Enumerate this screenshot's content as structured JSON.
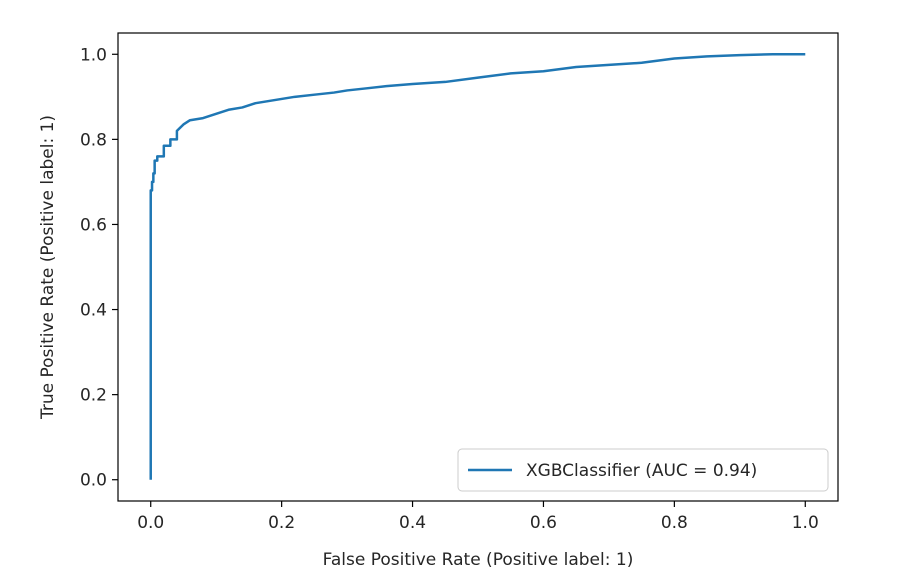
{
  "chart_data": {
    "type": "line",
    "title": "",
    "xlabel": "False Positive Rate (Positive label: 1)",
    "ylabel": "True Positive Rate (Positive label: 1)",
    "xlim": [
      -0.05,
      1.05
    ],
    "ylim": [
      -0.05,
      1.05
    ],
    "x_ticks": [
      0.0,
      0.2,
      0.4,
      0.6,
      0.8,
      1.0
    ],
    "y_ticks": [
      0.0,
      0.2,
      0.4,
      0.6,
      0.8,
      1.0
    ],
    "x_tick_labels": [
      "0.0",
      "0.2",
      "0.4",
      "0.6",
      "0.8",
      "1.0"
    ],
    "y_tick_labels": [
      "0.0",
      "0.2",
      "0.4",
      "0.6",
      "0.8",
      "1.0"
    ],
    "grid": false,
    "legend": {
      "position": "lower-right",
      "entries": [
        "XGBClassifier (AUC = 0.94)"
      ]
    },
    "series": [
      {
        "name": "XGBClassifier (AUC = 0.94)",
        "color": "#1f77b4",
        "x": [
          0.0,
          0.0,
          0.002,
          0.002,
          0.004,
          0.004,
          0.006,
          0.006,
          0.01,
          0.01,
          0.02,
          0.02,
          0.03,
          0.03,
          0.04,
          0.04,
          0.05,
          0.06,
          0.08,
          0.1,
          0.12,
          0.14,
          0.16,
          0.18,
          0.2,
          0.22,
          0.25,
          0.28,
          0.3,
          0.33,
          0.36,
          0.4,
          0.45,
          0.5,
          0.55,
          0.6,
          0.65,
          0.7,
          0.75,
          0.8,
          0.85,
          0.9,
          0.95,
          1.0
        ],
        "y": [
          0.0,
          0.68,
          0.68,
          0.7,
          0.7,
          0.72,
          0.72,
          0.75,
          0.75,
          0.76,
          0.76,
          0.785,
          0.785,
          0.8,
          0.8,
          0.82,
          0.835,
          0.845,
          0.85,
          0.86,
          0.87,
          0.875,
          0.885,
          0.89,
          0.895,
          0.9,
          0.905,
          0.91,
          0.915,
          0.92,
          0.925,
          0.93,
          0.935,
          0.945,
          0.955,
          0.96,
          0.97,
          0.975,
          0.98,
          0.99,
          0.995,
          0.998,
          1.0,
          1.0
        ]
      }
    ]
  }
}
